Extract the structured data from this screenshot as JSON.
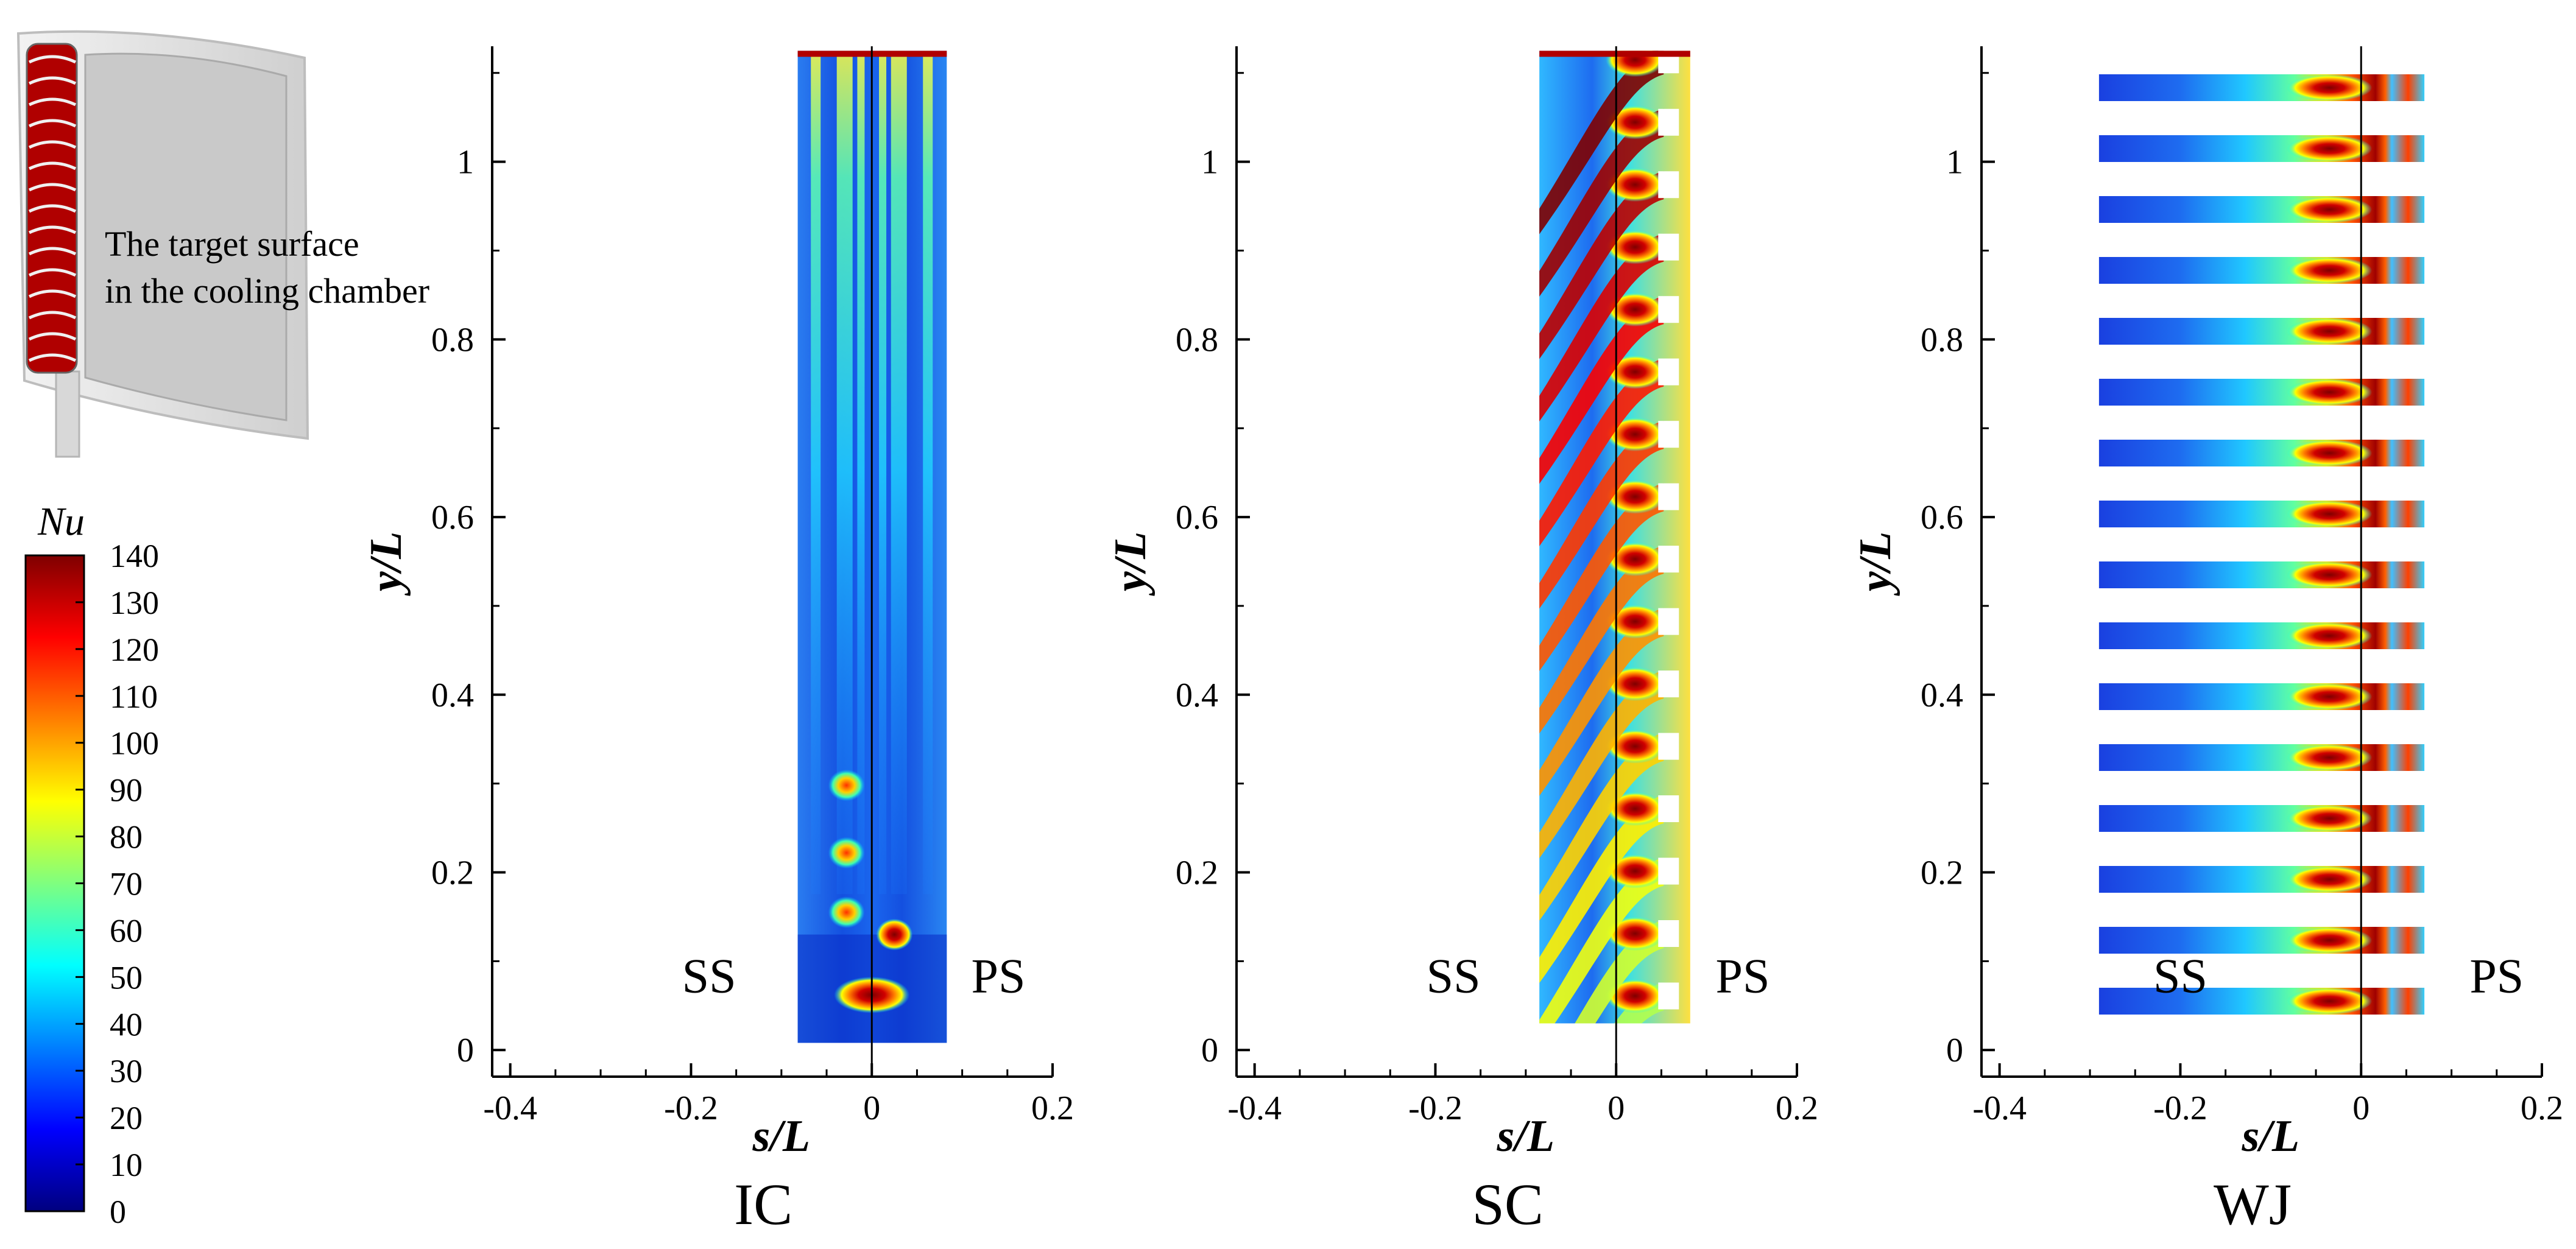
{
  "chart_data": {
    "type": "heatmap",
    "variable": "Nu",
    "colorbar": {
      "title": "Nu",
      "min": 0,
      "max": 140,
      "ticks": [
        "140",
        "130",
        "120",
        "110",
        "100",
        "90",
        "80",
        "70",
        "60",
        "50",
        "40",
        "30",
        "20",
        "10",
        "0"
      ],
      "colormap": [
        "#00007f",
        "#0000ff",
        "#007fff",
        "#00ffff",
        "#7fff7f",
        "#ffff00",
        "#ff7f00",
        "#ff0000",
        "#7f0000"
      ]
    },
    "inset": {
      "label_line1": "The target surface",
      "label_line2": "in the cooling chamber"
    },
    "panels": [
      {
        "caption": "IC",
        "xlabel": "s/L",
        "ylabel": "y/L",
        "xlim": [
          -0.42,
          0.2
        ],
        "ylim": [
          -0.03,
          1.13
        ],
        "xticks": [
          "-0.4",
          "-0.2",
          "0",
          "0.2"
        ],
        "yticks": [
          "0",
          "0.2",
          "0.4",
          "0.6",
          "0.8",
          "1"
        ],
        "left_label": "SS",
        "right_label": "PS",
        "surface": {
          "s_range": [
            -0.082,
            0.083
          ],
          "y_range": [
            0.008,
            1.125
          ]
        },
        "hot_spots": [
          {
            "s": 0.0,
            "y": 0.062,
            "nu": 140
          },
          {
            "s": 0.025,
            "y": 0.13,
            "nu": 120
          },
          {
            "s": -0.028,
            "y": 0.155,
            "nu": 95
          },
          {
            "s": -0.028,
            "y": 0.222,
            "nu": 95
          },
          {
            "s": -0.028,
            "y": 0.298,
            "nu": 85
          }
        ]
      },
      {
        "caption": "SC",
        "xlabel": "s/L",
        "ylabel": "y/L",
        "xlim": [
          -0.42,
          0.2
        ],
        "ylim": [
          -0.03,
          1.13
        ],
        "xticks": [
          "-0.4",
          "-0.2",
          "0",
          "0.2"
        ],
        "yticks": [
          "0",
          "0.2",
          "0.4",
          "0.6",
          "0.8",
          "1"
        ],
        "left_label": "SS",
        "right_label": "PS",
        "surface": {
          "s_range": [
            -0.085,
            0.082
          ],
          "y_range": [
            0.03,
            1.125
          ]
        },
        "jet_count": 16,
        "jet_s": 0.058,
        "peak_nu": 140
      },
      {
        "caption": "WJ",
        "xlabel": "s/L",
        "ylabel": "y/L",
        "xlim": [
          -0.42,
          0.2
        ],
        "ylim": [
          -0.03,
          1.13
        ],
        "xticks": [
          "-0.4",
          "-0.2",
          "0",
          "0.2"
        ],
        "yticks": [
          "0",
          "0.2",
          "0.4",
          "0.6",
          "0.8",
          "1"
        ],
        "left_label": "SS",
        "right_label": "PS",
        "surface": {
          "s_range": [
            -0.29,
            0.07
          ]
        },
        "strip_count": 16,
        "peak_s": -0.035,
        "peak_nu": 140
      }
    ]
  }
}
